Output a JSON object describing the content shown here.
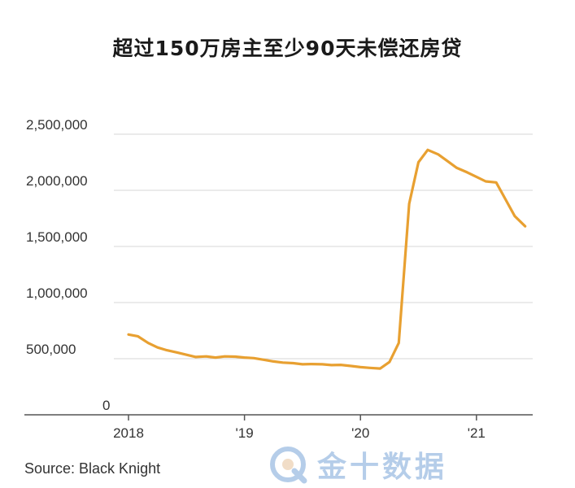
{
  "chart_data": {
    "type": "line",
    "title": "超过150万房主至少90天未偿还房贷",
    "xlabel": "",
    "ylabel": "",
    "ylim": [
      0,
      2500000
    ],
    "yticks": [
      0,
      500000,
      1000000,
      1500000,
      2000000,
      2500000
    ],
    "ytick_labels": [
      "0",
      "500,000",
      "1,000,000",
      "1,500,000",
      "2,000,000",
      "2,500,000"
    ],
    "xlim": [
      2018.0,
      2021.45
    ],
    "xticks": [
      2018,
      2019,
      2020,
      2021
    ],
    "xtick_labels": [
      "2018",
      "'19",
      "'20",
      "'21"
    ],
    "grid": true,
    "line_color": "#E8A031",
    "series": [
      {
        "x": [
          2018.0,
          2018.08,
          2018.17,
          2018.25,
          2018.33,
          2018.42,
          2018.5,
          2018.58,
          2018.67,
          2018.75,
          2018.83,
          2018.92,
          2019.0,
          2019.08,
          2019.17,
          2019.25,
          2019.33,
          2019.42,
          2019.5,
          2019.58,
          2019.67,
          2019.75,
          2019.83,
          2019.92,
          2020.0,
          2020.08,
          2020.17,
          2020.25,
          2020.33,
          2020.42,
          2020.5,
          2020.58,
          2020.67,
          2020.75,
          2020.83,
          2020.92,
          2021.0,
          2021.08,
          2021.17,
          2021.25,
          2021.33,
          2021.42
        ],
        "y": [
          715000,
          700000,
          640000,
          600000,
          575000,
          555000,
          535000,
          515000,
          520000,
          510000,
          520000,
          518000,
          510000,
          505000,
          490000,
          475000,
          465000,
          460000,
          450000,
          452000,
          450000,
          443000,
          445000,
          435000,
          425000,
          418000,
          412000,
          470000,
          640000,
          1880000,
          2250000,
          2360000,
          2320000,
          2260000,
          2200000,
          2160000,
          2120000,
          2080000,
          2070000,
          1920000,
          1770000,
          1680000
        ]
      }
    ]
  },
  "source_label": "Source: Black Knight",
  "watermark_text": "金十数据"
}
